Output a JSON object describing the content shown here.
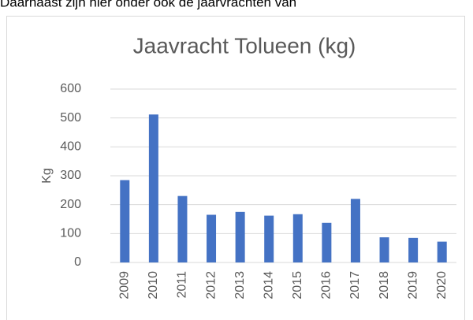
{
  "header_text": "Daarnaast zijn hier onder ook de jaarvrachten van",
  "chart_data": {
    "type": "bar",
    "title": "Jaavracht Tolueen (kg)",
    "y_label": "Kg",
    "categories": [
      "2009",
      "2010",
      "2011",
      "2012",
      "2013",
      "2014",
      "2015",
      "2016",
      "2017",
      "2018",
      "2019",
      "2020"
    ],
    "values": [
      285,
      512,
      230,
      165,
      175,
      162,
      167,
      137,
      220,
      87,
      85,
      72
    ],
    "color": "#4472c4",
    "ylim": [
      0,
      600
    ],
    "yticks": [
      0,
      100,
      200,
      300,
      400,
      500,
      600
    ],
    "grid": true
  }
}
